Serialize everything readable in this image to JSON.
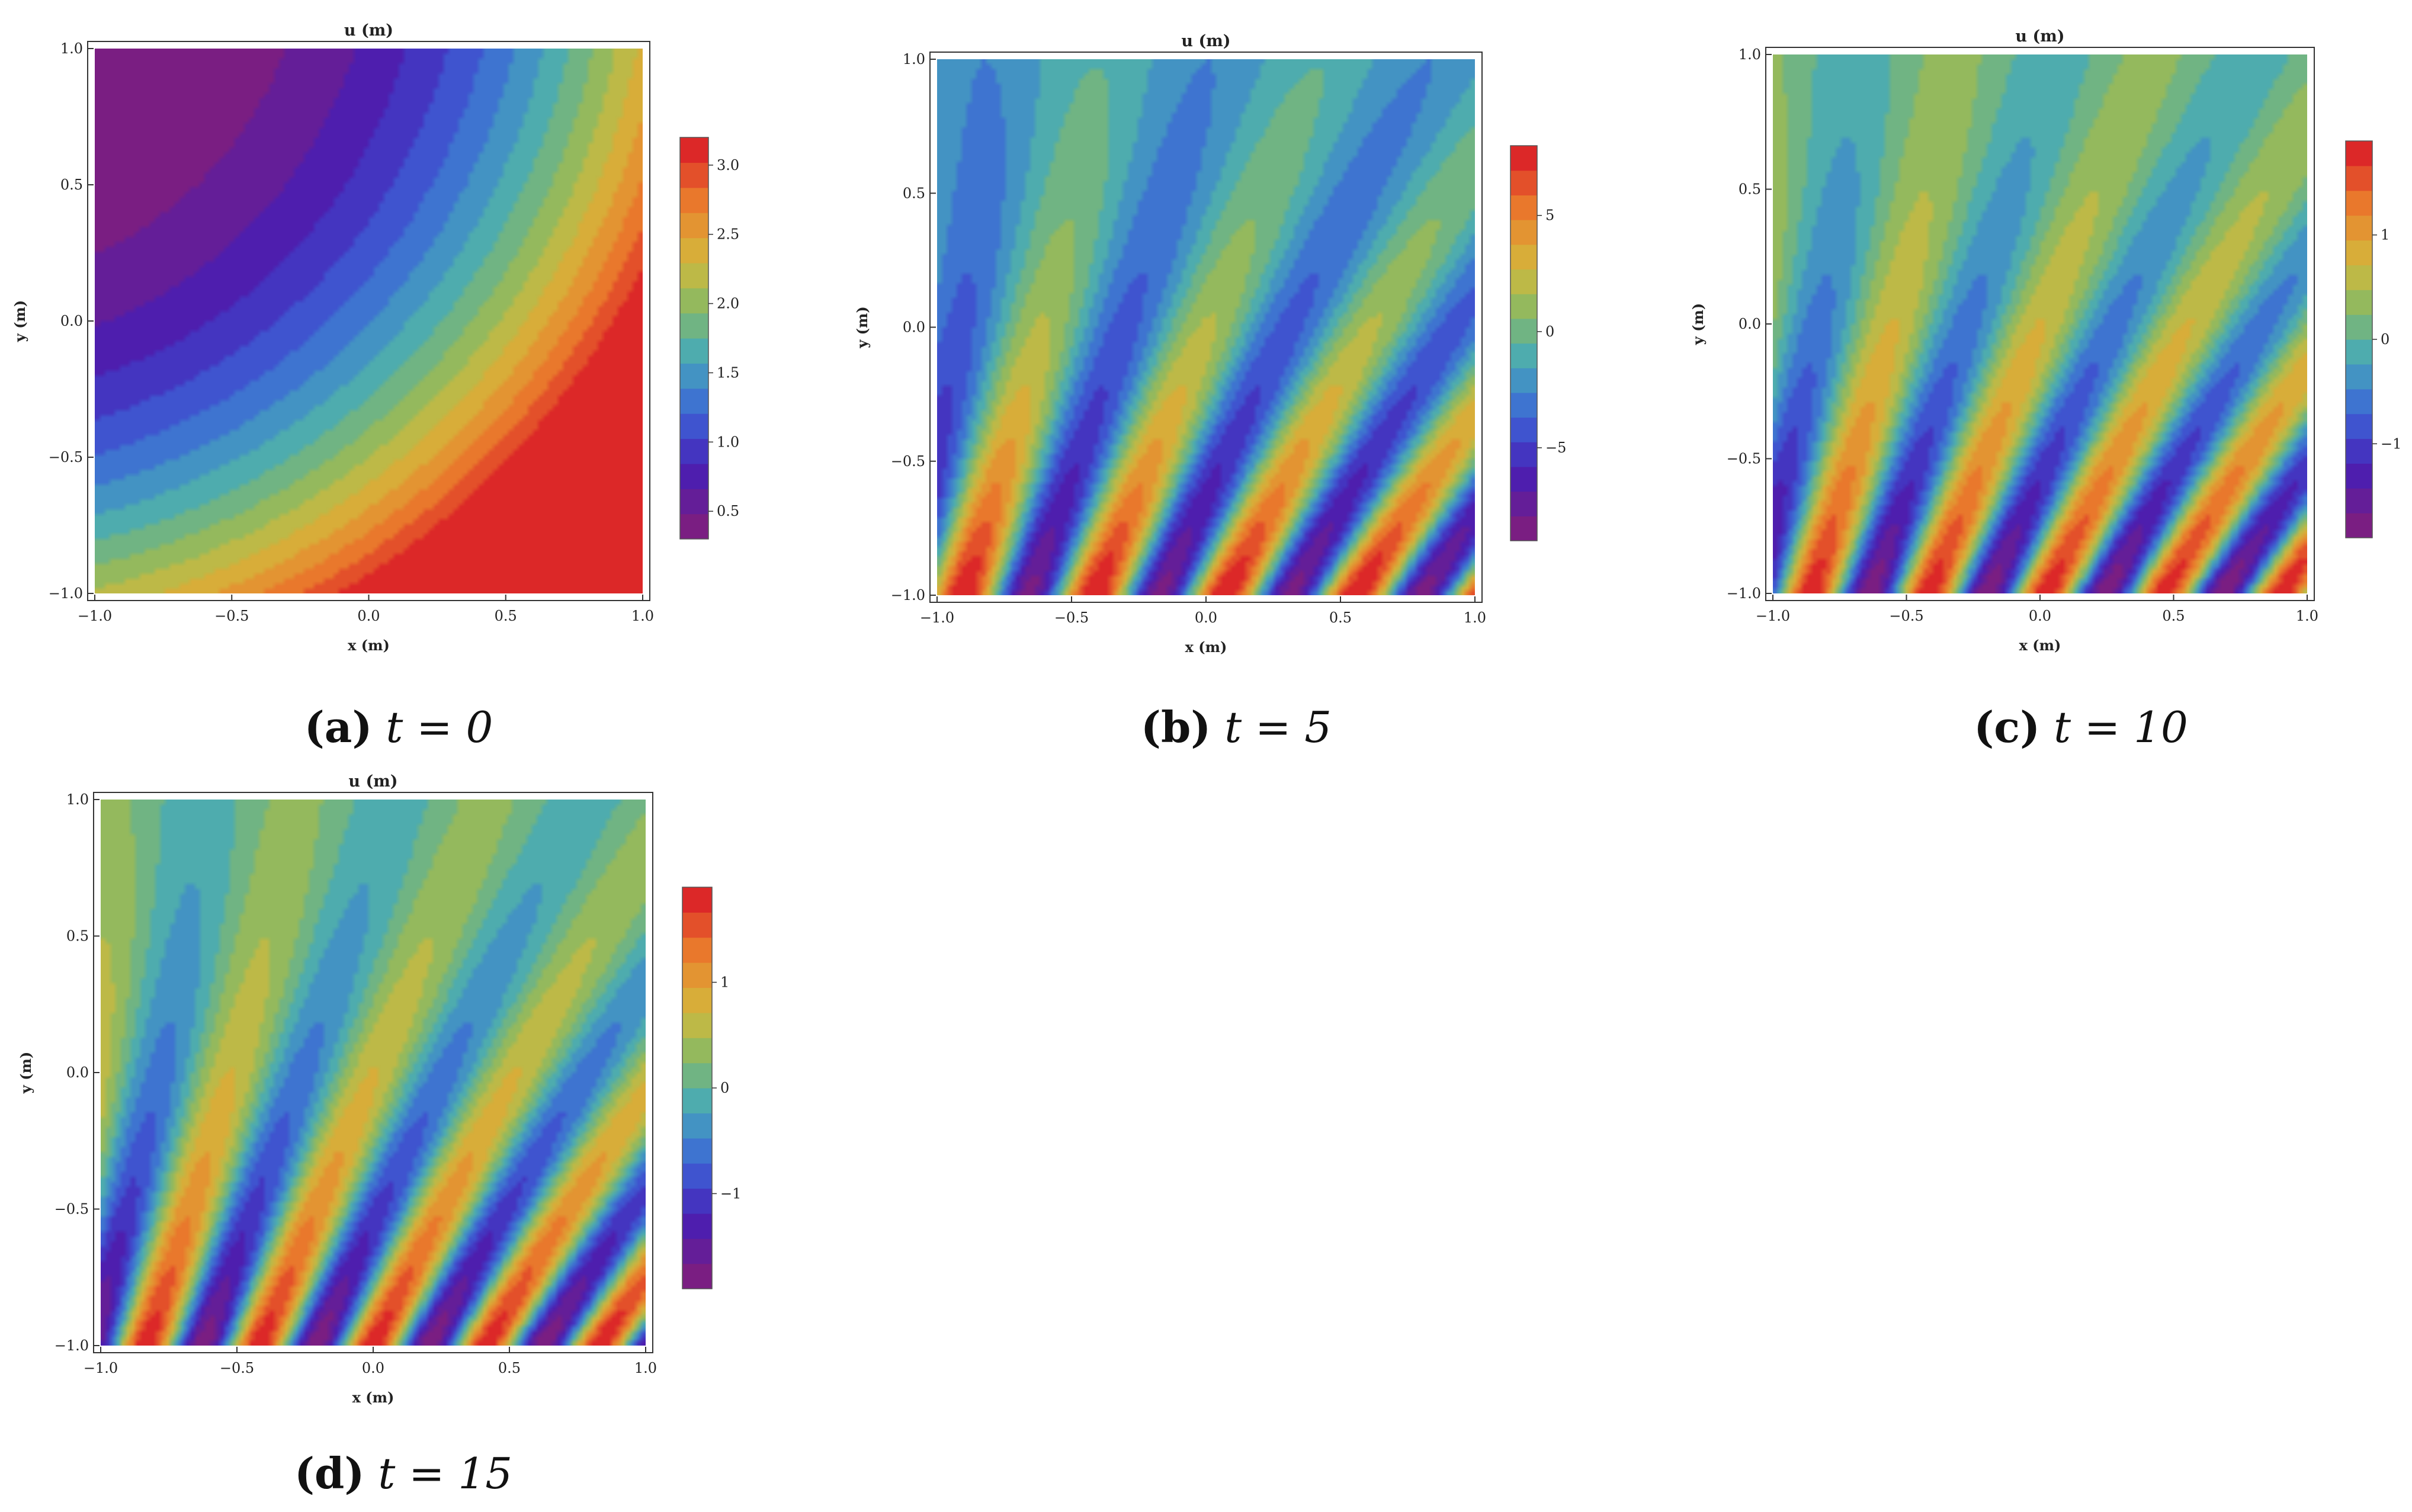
{
  "chart_data": [
    {
      "type": "heatmap",
      "title": "u (m)",
      "xlabel": "x (m)",
      "ylabel": "y (m)",
      "xlim": [
        -1.0,
        1.0
      ],
      "ylim": [
        -1.0,
        1.0
      ],
      "x_ticks": [
        "-1.0",
        "-0.5",
        "0.0",
        "0.5",
        "1.0"
      ],
      "y_ticks": [
        "-1.0",
        "-0.5",
        "0.0",
        "0.5",
        "1.0"
      ],
      "colorbar": {
        "range": [
          0.3,
          3.2
        ],
        "ticks": [
          "0.5",
          "1.0",
          "1.5",
          "2.0",
          "2.5",
          "3.0"
        ]
      },
      "caption": {
        "label": "(a)",
        "text": "t = 0"
      },
      "t": 0
    },
    {
      "type": "heatmap",
      "title": "u (m)",
      "xlabel": "x (m)",
      "ylabel": "y (m)",
      "xlim": [
        -1.0,
        1.0
      ],
      "ylim": [
        -1.0,
        1.0
      ],
      "x_ticks": [
        "-1.0",
        "-0.5",
        "0.0",
        "0.5",
        "1.0"
      ],
      "y_ticks": [
        "-1.0",
        "-0.5",
        "0.0",
        "0.5",
        "1.0"
      ],
      "colorbar": {
        "range": [
          -9,
          8
        ],
        "ticks": [
          "-5",
          "0",
          "5"
        ]
      },
      "caption": {
        "label": "(b)",
        "text": "t = 5"
      },
      "t": 5
    },
    {
      "type": "heatmap",
      "title": "u (m)",
      "xlabel": "x (m)",
      "ylabel": "y (m)",
      "xlim": [
        -1.0,
        1.0
      ],
      "ylim": [
        -1.0,
        1.0
      ],
      "x_ticks": [
        "-1.0",
        "-0.5",
        "0.0",
        "0.5",
        "1.0"
      ],
      "y_ticks": [
        "-1.0",
        "-0.5",
        "0.0",
        "0.5",
        "1.0"
      ],
      "colorbar": {
        "range": [
          -1.9,
          1.9
        ],
        "ticks": [
          "-1",
          "0",
          "1"
        ]
      },
      "caption": {
        "label": "(c)",
        "text": "t = 10"
      },
      "t": 10
    },
    {
      "type": "heatmap",
      "title": "u (m)",
      "xlabel": "x (m)",
      "ylabel": "y (m)",
      "xlim": [
        -1.0,
        1.0
      ],
      "ylim": [
        -1.0,
        1.0
      ],
      "x_ticks": [
        "-1.0",
        "-0.5",
        "0.0",
        "0.5",
        "1.0"
      ],
      "y_ticks": [
        "-1.0",
        "-0.5",
        "0.0",
        "0.5",
        "1.0"
      ],
      "colorbar": {
        "range": [
          -1.9,
          1.9
        ],
        "ticks": [
          "-1",
          "0",
          "1"
        ]
      },
      "caption": {
        "label": "(d)",
        "text": "t = 15"
      },
      "t": 15
    }
  ]
}
